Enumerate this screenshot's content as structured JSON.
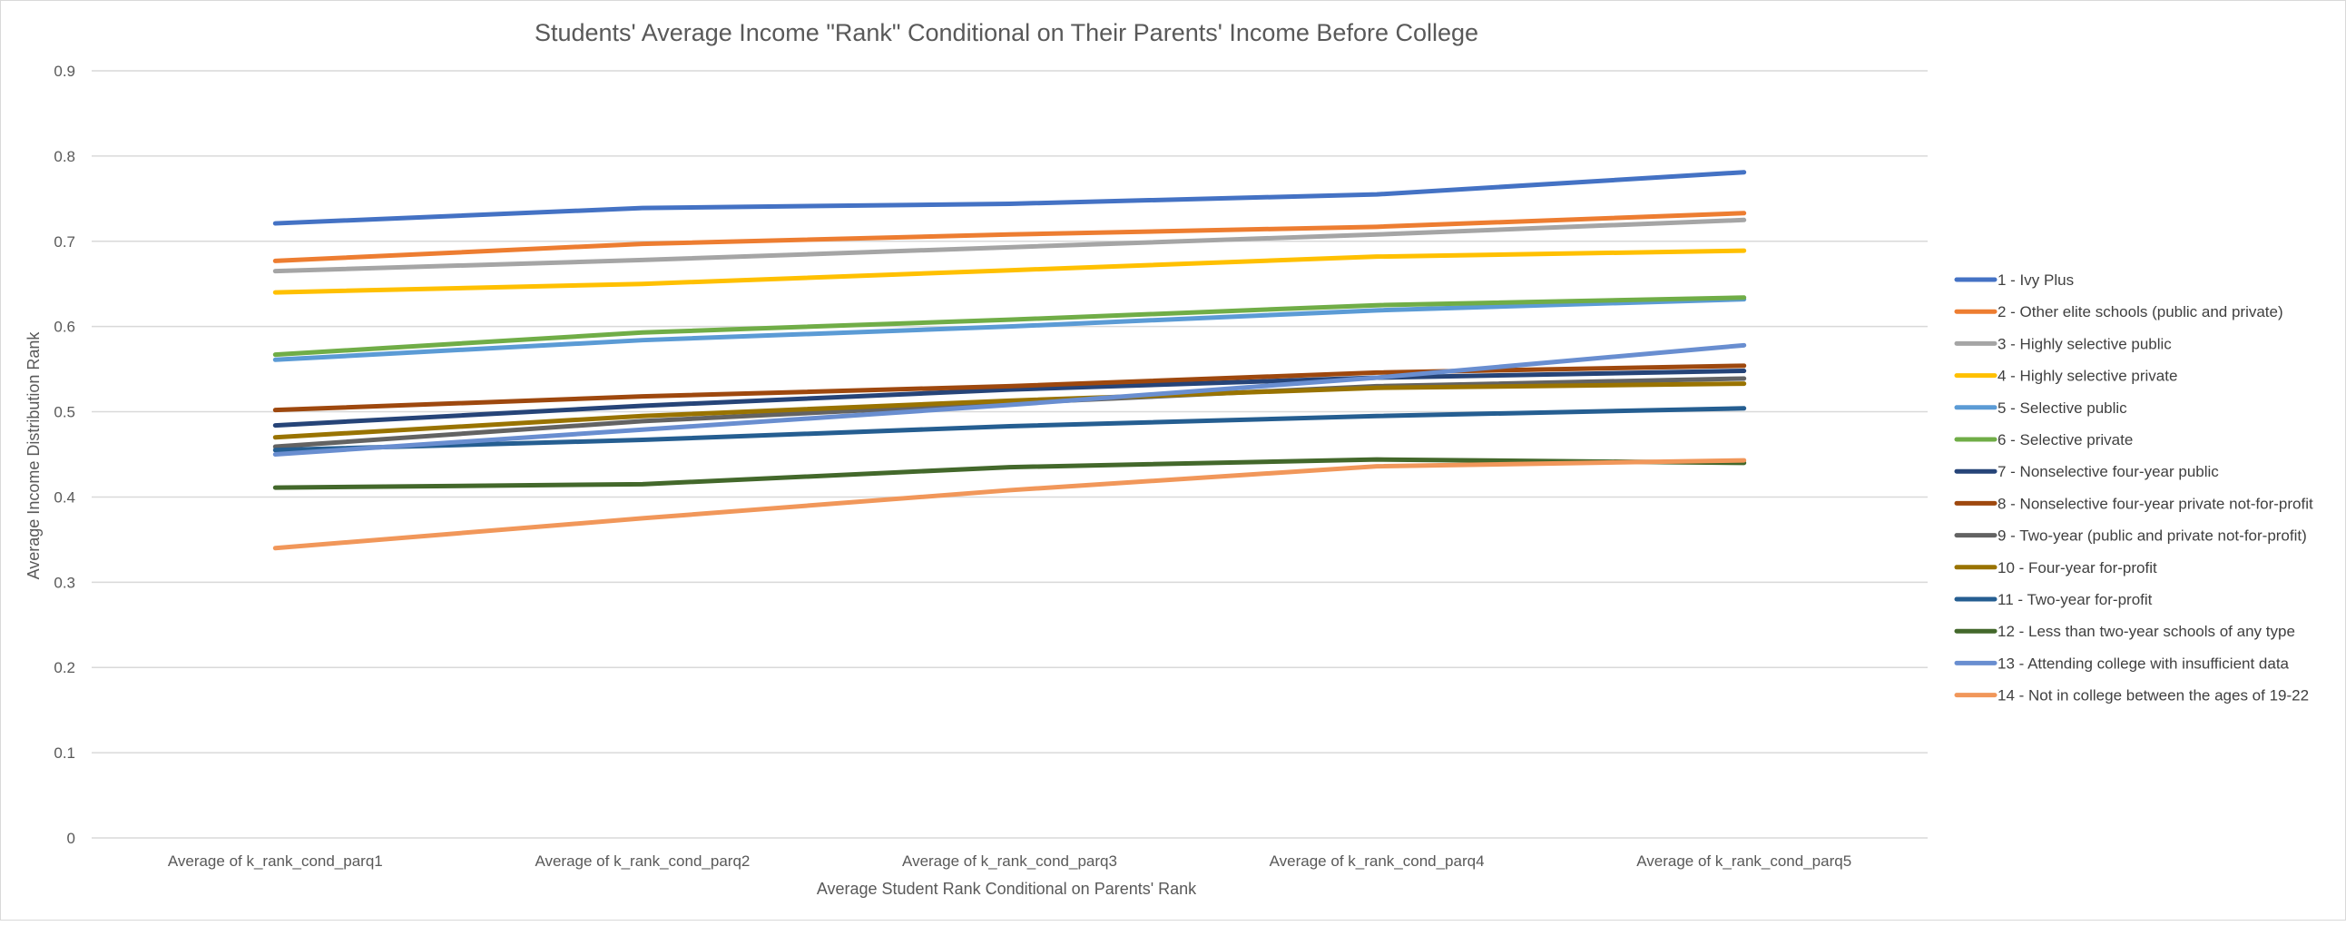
{
  "chart_data": {
    "type": "line",
    "title": "Students' Average Income \"Rank\" Conditional on Their Parents' Income Before College",
    "xlabel": "Average Student Rank Conditional on Parents' Rank",
    "ylabel": "Average Income Distribution Rank",
    "categories": [
      "Average of k_rank_cond_parq1",
      "Average of k_rank_cond_parq2",
      "Average of k_rank_cond_parq3",
      "Average of k_rank_cond_parq4",
      "Average of k_rank_cond_parq5"
    ],
    "ylim": [
      0,
      0.9
    ],
    "yticks": [
      0,
      0.1,
      0.2,
      0.3,
      0.4,
      0.5,
      0.6,
      0.7,
      0.8,
      0.9
    ],
    "ytick_labels": [
      "0",
      "0.1",
      "0.2",
      "0.3",
      "0.4",
      "0.5",
      "0.6",
      "0.7",
      "0.8",
      "0.9"
    ],
    "grid": true,
    "legend_position": "right",
    "series": [
      {
        "name": "1 - Ivy Plus",
        "color": "#4472C4",
        "values": [
          0.721,
          0.739,
          0.744,
          0.755,
          0.781
        ]
      },
      {
        "name": "2 - Other elite schools (public and private)",
        "color": "#ED7D31",
        "values": [
          0.677,
          0.697,
          0.708,
          0.717,
          0.733
        ]
      },
      {
        "name": "3 - Highly selective public",
        "color": "#A5A5A5",
        "values": [
          0.665,
          0.678,
          0.693,
          0.708,
          0.725
        ]
      },
      {
        "name": "4 - Highly selective private",
        "color": "#FFC000",
        "values": [
          0.64,
          0.65,
          0.666,
          0.682,
          0.689
        ]
      },
      {
        "name": "5 - Selective public",
        "color": "#5B9BD5",
        "values": [
          0.561,
          0.584,
          0.6,
          0.619,
          0.632
        ]
      },
      {
        "name": "6 - Selective private",
        "color": "#70AD47",
        "values": [
          0.567,
          0.593,
          0.608,
          0.625,
          0.634
        ]
      },
      {
        "name": "7 - Nonselective four-year public",
        "color": "#264478",
        "values": [
          0.484,
          0.507,
          0.526,
          0.54,
          0.548
        ]
      },
      {
        "name": "8 - Nonselective four-year private not-for-profit",
        "color": "#9E480E",
        "values": [
          0.502,
          0.518,
          0.53,
          0.546,
          0.554
        ]
      },
      {
        "name": "9 - Two-year (public and private not-for-profit)",
        "color": "#636363",
        "values": [
          0.459,
          0.489,
          0.51,
          0.53,
          0.539
        ]
      },
      {
        "name": "10 - Four-year for-profit",
        "color": "#997300",
        "values": [
          0.47,
          0.495,
          0.513,
          0.528,
          0.533
        ]
      },
      {
        "name": "11 - Two-year for-profit",
        "color": "#255E91",
        "values": [
          0.455,
          0.467,
          0.483,
          0.495,
          0.504
        ]
      },
      {
        "name": "12 - Less than two-year schools of any type",
        "color": "#43682B",
        "values": [
          0.411,
          0.415,
          0.435,
          0.444,
          0.44
        ]
      },
      {
        "name": "13 - Attending college with insufficient data",
        "color": "#698ED0",
        "values": [
          0.45,
          0.479,
          0.508,
          0.54,
          0.578
        ]
      },
      {
        "name": "14 - Not in college between the ages of 19-22",
        "color": "#F1975A",
        "values": [
          0.34,
          0.375,
          0.408,
          0.436,
          0.443
        ]
      }
    ]
  }
}
